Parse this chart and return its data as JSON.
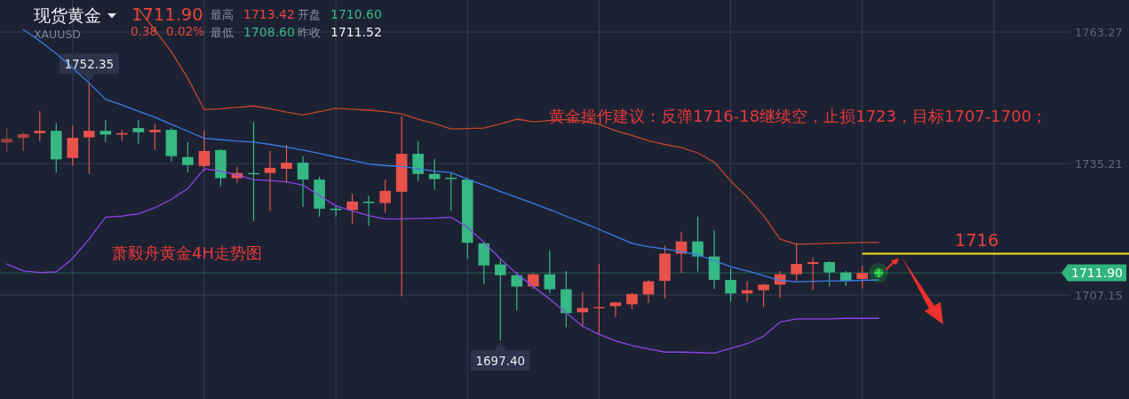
{
  "chart_data": {
    "type": "candlestick",
    "title": "现货黄金",
    "subtitle": "XAUUSD",
    "annotations": [
      "1711.90",
      "0.38",
      "0.02%",
      "最高",
      "1713.42",
      "开盘",
      "1710.60",
      "最低",
      "1708.60",
      "昨收",
      "1711.52",
      "黄金操作建议：反弹1716-18继续空，止损1723，目标1707-1700；",
      "萧毅舟黄金4H走势图",
      {
        "text": "1752.35",
        "y": 1752.35
      },
      {
        "text": "1697.40",
        "y": 1697.4
      }
    ],
    "categories": [
      null,
      null,
      null,
      null,
      null,
      null,
      null,
      null,
      null,
      null,
      null,
      null,
      null,
      null,
      null,
      null,
      null,
      null,
      null,
      null,
      null,
      null,
      null,
      null,
      null,
      null,
      null,
      null,
      null,
      null,
      null,
      null,
      null,
      null,
      null,
      null,
      null,
      null,
      null,
      null,
      null,
      null,
      null,
      null,
      null,
      null,
      null,
      null,
      null,
      null,
      null,
      null,
      null,
      null
    ],
    "ohlc": [
      [
        1739.7,
        1742.8,
        1737.8,
        1740.5
      ],
      [
        1740.7,
        1741.8,
        1737.9,
        1741.5
      ],
      [
        1741.7,
        1746.4,
        1740.0,
        1742.2
      ],
      [
        1742.2,
        1743.8,
        1733.3,
        1736.1
      ],
      [
        1736.4,
        1743.3,
        1734.7,
        1740.7
      ],
      [
        1740.8,
        1752.35,
        1733.0,
        1742.2
      ],
      [
        1742.2,
        1744.5,
        1739.8,
        1741.4
      ],
      [
        1741.4,
        1742.4,
        1740.0,
        1741.7
      ],
      [
        1742.8,
        1744.5,
        1739.5,
        1741.9
      ],
      [
        1741.9,
        1743.6,
        1738.1,
        1742.4
      ],
      [
        1742.4,
        1742.8,
        1735.7,
        1736.8
      ],
      [
        1736.6,
        1739.8,
        1733.3,
        1734.9
      ],
      [
        1734.7,
        1742.4,
        1733.6,
        1737.9
      ],
      [
        1738.1,
        1738.3,
        1730.4,
        1732.1
      ],
      [
        1732.1,
        1734.5,
        1731.1,
        1733.2
      ],
      [
        1733.2,
        1744.1,
        1723.0,
        1733.0
      ],
      [
        1733.2,
        1737.9,
        1725.1,
        1734.3
      ],
      [
        1734.1,
        1739.2,
        1731.1,
        1735.4
      ],
      [
        1735.4,
        1736.8,
        1726.0,
        1731.8
      ],
      [
        1731.8,
        1732.4,
        1723.9,
        1725.6
      ],
      [
        1725.6,
        1726.2,
        1723.9,
        1725.3
      ],
      [
        1725.3,
        1728.8,
        1722.4,
        1727.1
      ],
      [
        1727.1,
        1728.4,
        1722.0,
        1726.8
      ],
      [
        1726.8,
        1731.8,
        1724.7,
        1729.4
      ],
      [
        1729.2,
        1745.3,
        1706.9,
        1737.3
      ],
      [
        1737.3,
        1740.0,
        1731.5,
        1733.0
      ],
      [
        1733.0,
        1736.2,
        1729.6,
        1731.9
      ],
      [
        1732.2,
        1733.2,
        1725.1,
        1732.0
      ],
      [
        1731.8,
        1732.2,
        1714.9,
        1718.3
      ],
      [
        1718.2,
        1718.6,
        1709.5,
        1713.5
      ],
      [
        1713.7,
        1714.7,
        1697.4,
        1711.4
      ],
      [
        1711.4,
        1712.1,
        1703.9,
        1709.0
      ],
      [
        1709.0,
        1711.9,
        1708.5,
        1711.6
      ],
      [
        1711.6,
        1716.7,
        1707.6,
        1708.4
      ],
      [
        1708.4,
        1712.3,
        1700.3,
        1703.3
      ],
      [
        1703.5,
        1707.8,
        1700.3,
        1704.4
      ],
      [
        1704.4,
        1713.8,
        1698.6,
        1704.6
      ],
      [
        1704.8,
        1705.8,
        1702.4,
        1705.6
      ],
      [
        1705.2,
        1707.7,
        1704.1,
        1707.4
      ],
      [
        1707.3,
        1710.4,
        1705.5,
        1710.1
      ],
      [
        1710.2,
        1717.7,
        1706.5,
        1716.0
      ],
      [
        1716.0,
        1720.7,
        1711.9,
        1718.6
      ],
      [
        1718.6,
        1723.9,
        1712.2,
        1715.4
      ],
      [
        1715.4,
        1721.0,
        1708.5,
        1710.4
      ],
      [
        1710.4,
        1712.9,
        1705.7,
        1707.5
      ],
      [
        1707.5,
        1710.1,
        1705.7,
        1708.2
      ],
      [
        1708.2,
        1709.6,
        1704.6,
        1709.4
      ],
      [
        1709.4,
        1712.3,
        1706.6,
        1711.6
      ],
      [
        1711.6,
        1718.3,
        1710.2,
        1713.8
      ],
      [
        1713.8,
        1715.2,
        1708.2,
        1714.2
      ],
      [
        1714.2,
        1714.4,
        1709.0,
        1712.0
      ],
      [
        1712.0,
        1712.3,
        1709.0,
        1710.2
      ],
      [
        1710.6,
        1713.42,
        1708.6,
        1711.9
      ],
      null
    ],
    "colors": [
      "#9a3d3d",
      "#b5443c",
      "#e8524a",
      "#35b883",
      "#e8524a",
      "#e8524a",
      "#35b883",
      "#e8524a",
      "#35b883",
      "#e8524a",
      "#35b883",
      "#35b883",
      "#e8524a",
      "#35b883",
      "#e8524a",
      "#35b883",
      "#e8524a",
      "#e8524a",
      "#35b883",
      "#35b883",
      "#35b883",
      "#e8524a",
      "#35b883",
      "#e8524a",
      "#e8524a",
      "#35b883",
      "#35b883",
      "#35b883",
      "#35b883",
      "#35b883",
      "#35b883",
      "#35b883",
      "#e8524a",
      "#35b883",
      "#35b883",
      "#e8524a",
      "#e8524a",
      "#e8524a",
      "#e8524a",
      "#e8524a",
      "#e8524a",
      "#e8524a",
      "#35b883",
      "#35b883",
      "#35b883",
      "#e8524a",
      "#e8524a",
      "#e8524a",
      "#e8524a",
      "#e8524a",
      "#35b883",
      "#35b883",
      "#e8524a",
      null
    ],
    "series": [
      {
        "type": "line",
        "color": "#c4452f",
        "values": [
          null,
          null,
          null,
          null,
          null,
          null,
          null,
          null,
          1768.2,
          1763.7,
          1759.1,
          1753.4,
          1746.7,
          1746.9,
          1747.2,
          1747.5,
          1746.9,
          1746.2,
          1745.6,
          1746.3,
          1747.0,
          1746.8,
          1746.6,
          1746.3,
          1745.8,
          1744.7,
          1743.8,
          1742.6,
          1742.7,
          1742.8,
          1743.7,
          1744.7,
          1744.1,
          1744.4,
          1744.6,
          1744.3,
          1743.6,
          1742.2,
          1741.2,
          1740.1,
          1739.3,
          1738.6,
          1737.5,
          1735.5,
          1731.5,
          1728.1,
          1724.1,
          1719.1,
          1718.0,
          1718.1,
          1718.2,
          1718.3,
          1718.4,
          1718.4
        ]
      },
      {
        "type": "line",
        "color": "#3b7be6",
        "values": [
          null,
          1763.8,
          1761.4,
          1758.7,
          1755.6,
          1752.4,
          1748.9,
          1747.7,
          1746.4,
          1745.1,
          1743.6,
          1742.1,
          1740.6,
          1740.3,
          1740.0,
          1739.8,
          1739.3,
          1738.7,
          1738.1,
          1737.4,
          1736.6,
          1735.9,
          1735.1,
          1734.8,
          1734.6,
          1734.1,
          1733.6,
          1733.3,
          1731.9,
          1730.6,
          1729.3,
          1728.0,
          1726.7,
          1725.4,
          1724.0,
          1722.6,
          1721.2,
          1719.7,
          1718.2,
          1717.5,
          1717.0,
          1716.4,
          1715.8,
          1714.5,
          1713.2,
          1712.3,
          1711.3,
          1710.3,
          1710.0,
          1710.1,
          1710.2,
          1710.2,
          1710.3,
          1710.4
        ]
      },
      {
        "type": "line",
        "color": "#8a44e6",
        "values": [
          1713.8,
          1712.3,
          1712.0,
          1712.1,
          1715.0,
          1719.1,
          1723.8,
          1724.0,
          1724.5,
          1725.8,
          1727.6,
          1729.9,
          1734.1,
          1733.6,
          1732.8,
          1731.8,
          1731.6,
          1731.3,
          1730.6,
          1728.4,
          1726.2,
          1725.1,
          1724.1,
          1723.4,
          1723.4,
          1723.5,
          1723.6,
          1723.8,
          1721.6,
          1718.4,
          1714.9,
          1711.7,
          1709.0,
          1706.3,
          1703.4,
          1700.5,
          1698.8,
          1697.4,
          1696.4,
          1695.7,
          1695.0,
          1695.0,
          1694.9,
          1694.8,
          1695.8,
          1696.8,
          1698.4,
          1701.4,
          1702.1,
          1702.1,
          1702.1,
          1702.2,
          1702.2,
          1702.2
        ]
      }
    ],
    "ylim": [
      1685.0,
      1770.1
    ],
    "yticks": [
      1707.15,
      1735.21,
      1763.27
    ],
    "grid": true,
    "tick_labels": "y",
    "ref_lines": [
      {
        "axis": "y",
        "value": 1711.9,
        "label": "1711.90",
        "color": "#2fb47c"
      },
      {
        "axis": "y",
        "value": 1716,
        "label": "1716",
        "color": "#ffe11a"
      }
    ]
  }
}
